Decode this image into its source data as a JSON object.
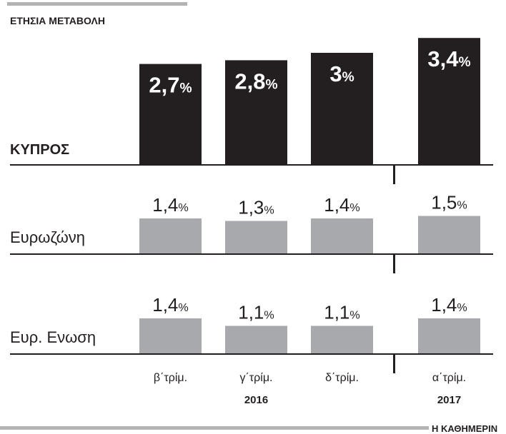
{
  "title": "ΕΤΗΣΙΑ ΜΕΤΑΒΟΛΗ",
  "source": "Η ΚΑΘΗΜΕΡΙΝ",
  "categories": [
    "β΄τρίμ.",
    "γ΄τρίμ.",
    "δ΄τρίμ.",
    "α΄τρίμ."
  ],
  "years": [
    "2016",
    "2017"
  ],
  "chart_data": [
    {
      "type": "bar",
      "label": "ΚΥΠΡΟΣ",
      "values": [
        2.7,
        2.8,
        3,
        3.4
      ],
      "value_labels": [
        "2,7%",
        "2,8%",
        "3%",
        "3,4%"
      ],
      "color": "#231f20"
    },
    {
      "type": "bar",
      "label": "Ευρωζώνη",
      "values": [
        1.4,
        1.3,
        1.4,
        1.5
      ],
      "value_labels": [
        "1,4%",
        "1,3%",
        "1,4%",
        "1,5%"
      ],
      "color": "#a7a9ac"
    },
    {
      "type": "bar",
      "label": "Ευρ. Ενωση",
      "values": [
        1.4,
        1.1,
        1.1,
        1.4
      ],
      "value_labels": [
        "1,4%",
        "1,1%",
        "1,1%",
        "1,4%"
      ],
      "color": "#a7a9ac"
    }
  ]
}
